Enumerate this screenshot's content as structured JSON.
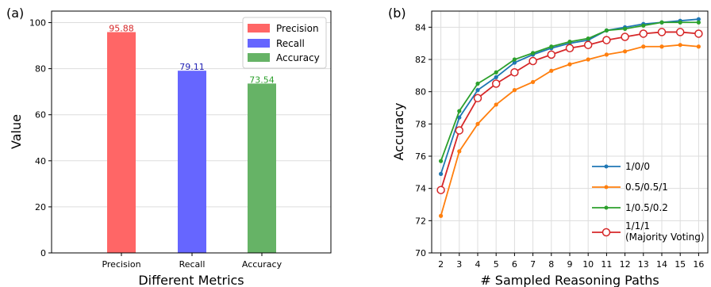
{
  "chart_data": [
    {
      "type": "bar",
      "panel_label": "(a)",
      "categories": [
        "Precision",
        "Recall",
        "Accuracy"
      ],
      "values": [
        95.88,
        79.11,
        73.54
      ],
      "value_labels": [
        "95.88",
        "79.11",
        "73.54"
      ],
      "colors": [
        "#ff6666",
        "#6666ff",
        "#66b366"
      ],
      "label_colors": [
        "#d62728",
        "#1f1fb4",
        "#2ca02c"
      ],
      "xlabel": "Different Metrics",
      "ylabel": "Value",
      "ylim": [
        0,
        105
      ],
      "yticks": [
        "0",
        "20",
        "40",
        "60",
        "80",
        "100"
      ],
      "grid": "horizontal",
      "legend_position": "top-right",
      "legend": [
        "Precision",
        "Recall",
        "Accuracy"
      ]
    },
    {
      "type": "line",
      "panel_label": "(b)",
      "x": [
        2,
        3,
        4,
        5,
        6,
        7,
        8,
        9,
        10,
        11,
        12,
        13,
        14,
        15,
        16
      ],
      "xticks": [
        "2",
        "3",
        "4",
        "5",
        "6",
        "7",
        "8",
        "9",
        "10",
        "11",
        "12",
        "13",
        "14",
        "15",
        "16"
      ],
      "xlabel": "# Sampled Reasoning Paths",
      "ylabel": "Accuracy",
      "ylim": [
        70,
        85
      ],
      "yticks": [
        "70",
        "72",
        "74",
        "76",
        "78",
        "80",
        "82",
        "84"
      ],
      "grid": "both",
      "legend_position": "bottom-right",
      "series": [
        {
          "name": "1/0/0",
          "color": "#1f77b4",
          "marker": "dot",
          "values": [
            74.9,
            78.4,
            80.1,
            80.9,
            81.8,
            82.3,
            82.7,
            83.0,
            83.2,
            83.8,
            84.0,
            84.2,
            84.3,
            84.4,
            84.5
          ]
        },
        {
          "name": "0.5/0.5/1",
          "color": "#ff7f0e",
          "marker": "dot",
          "values": [
            72.3,
            76.3,
            78.0,
            79.2,
            80.1,
            80.6,
            81.3,
            81.7,
            82.0,
            82.3,
            82.5,
            82.8,
            82.8,
            82.9,
            82.8
          ]
        },
        {
          "name": "1/0.5/0.2",
          "color": "#2ca02c",
          "marker": "dot",
          "values": [
            75.7,
            78.8,
            80.5,
            81.2,
            82.0,
            82.4,
            82.8,
            83.1,
            83.3,
            83.8,
            83.9,
            84.1,
            84.3,
            84.3,
            84.3
          ]
        },
        {
          "name": "1/1/1",
          "name_line2": "(Majority Voting)",
          "color": "#d62728",
          "marker": "open-circle",
          "values": [
            73.9,
            77.6,
            79.6,
            80.5,
            81.2,
            81.9,
            82.3,
            82.7,
            82.9,
            83.2,
            83.4,
            83.6,
            83.7,
            83.7,
            83.6
          ]
        }
      ]
    }
  ]
}
